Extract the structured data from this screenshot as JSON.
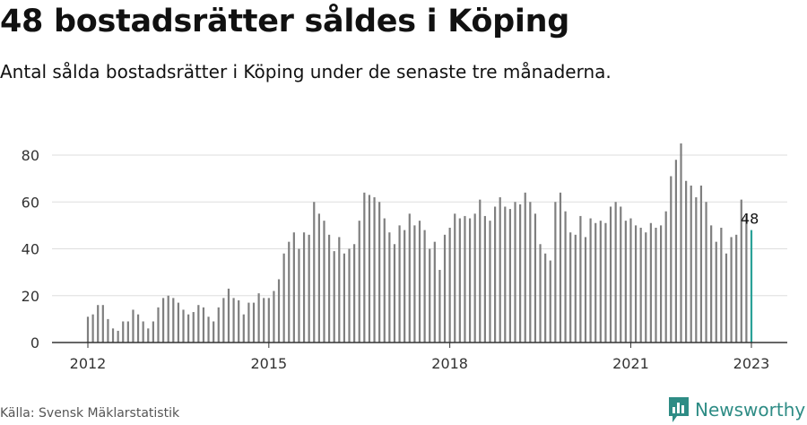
{
  "header": {
    "title": "48 bostadsrätter såldes i Köping",
    "subtitle": "Antal sålda bostadsrätter i Köping under de senaste tre månaderna."
  },
  "footer": {
    "source": "Källa: Svensk Mäklarstatistik",
    "brand": "Newsworthy"
  },
  "colors": {
    "bar": "#7f7f7f",
    "highlight": "#2aa198",
    "grid": "#dddddd",
    "axis": "#333333",
    "brand": "#2e8c85"
  },
  "chart_data": {
    "type": "bar",
    "title": "48 bostadsrätter såldes i Köping",
    "subtitle": "Antal sålda bostadsrätter i Köping under de senaste tre månaderna.",
    "x_start": "2012-01",
    "x_end": "2023-01",
    "x_ticks": [
      "2012",
      "2015",
      "2018",
      "2021",
      "2023"
    ],
    "y_ticks": [
      0,
      20,
      40,
      60,
      80
    ],
    "ylim": [
      0,
      88
    ],
    "grid": true,
    "highlight_last": true,
    "last_label": "48",
    "values": [
      11,
      12,
      16,
      16,
      10,
      6,
      5,
      9,
      9,
      14,
      12,
      9,
      6,
      9,
      15,
      19,
      20,
      19,
      17,
      14,
      12,
      13,
      16,
      15,
      11,
      9,
      15,
      19,
      23,
      19,
      18,
      12,
      17,
      17,
      21,
      19,
      19,
      22,
      27,
      38,
      43,
      47,
      40,
      47,
      46,
      60,
      55,
      52,
      46,
      39,
      45,
      38,
      40,
      42,
      52,
      64,
      63,
      62,
      60,
      53,
      47,
      42,
      50,
      48,
      55,
      50,
      52,
      48,
      40,
      43,
      31,
      46,
      49,
      55,
      53,
      54,
      53,
      55,
      61,
      54,
      52,
      58,
      62,
      58,
      57,
      60,
      59,
      64,
      60,
      55,
      42,
      38,
      35,
      60,
      64,
      56,
      47,
      46,
      54,
      45,
      53,
      51,
      52,
      51,
      58,
      60,
      58,
      52,
      53,
      50,
      49,
      47,
      51,
      49,
      50,
      56,
      71,
      78,
      85,
      69,
      67,
      62,
      67,
      60,
      50,
      43,
      49,
      38,
      45,
      46,
      61,
      54,
      48
    ]
  }
}
